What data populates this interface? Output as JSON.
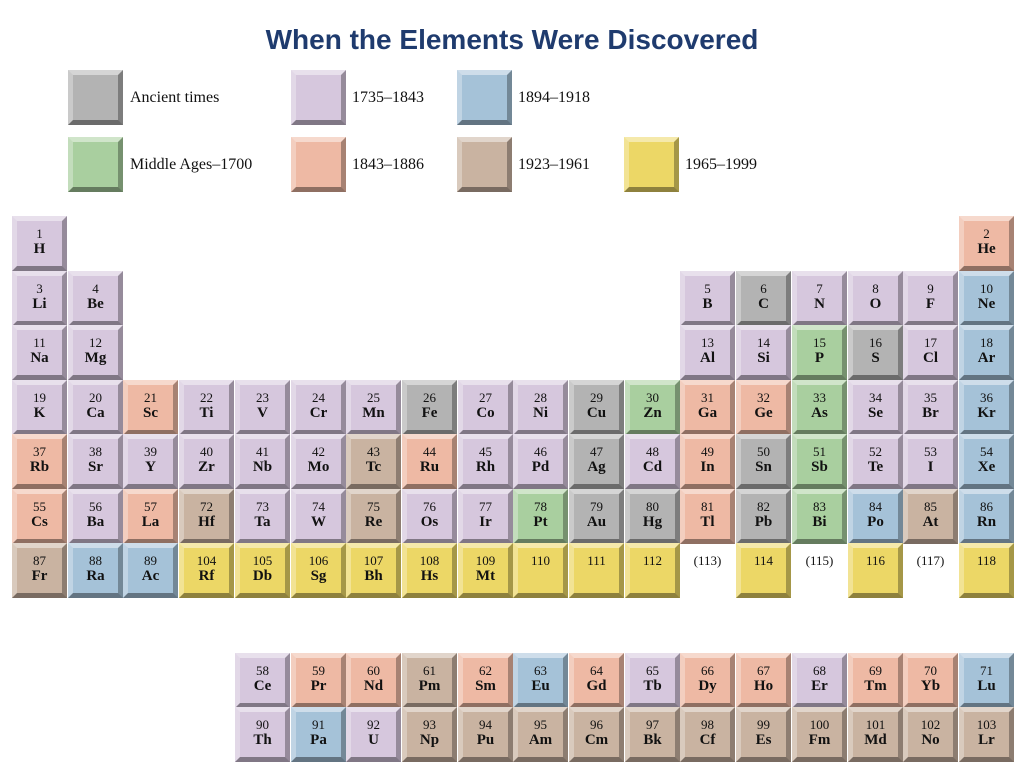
{
  "title": "When the Elements Were Discovered",
  "colors": {
    "ancient": "#b3b3b3",
    "middle": "#a9cf9f",
    "p1735": "#d6c7dd",
    "p1843": "#eeb9a4",
    "p1894": "#a5c2d8",
    "p1923": "#c9b3a1",
    "p1965": "#ecd766"
  },
  "legend": [
    {
      "era": "ancient",
      "label": "Ancient times"
    },
    {
      "era": "p1735",
      "label": "1735–1843"
    },
    {
      "era": "p1894",
      "label": "1894–1918"
    },
    {
      "era": "middle",
      "label": "Middle Ages–1700"
    },
    {
      "era": "p1843",
      "label": "1843–1886"
    },
    {
      "era": "p1923",
      "label": "1923–1961"
    },
    {
      "era": "p1965",
      "label": "1965–1999"
    }
  ],
  "elements": [
    {
      "num": "1",
      "sym": "H",
      "row": 1,
      "col": 1,
      "era": "p1735"
    },
    {
      "num": "2",
      "sym": "He",
      "row": 1,
      "col": 18,
      "era": "p1843"
    },
    {
      "num": "3",
      "sym": "Li",
      "row": 2,
      "col": 1,
      "era": "p1735"
    },
    {
      "num": "4",
      "sym": "Be",
      "row": 2,
      "col": 2,
      "era": "p1735"
    },
    {
      "num": "5",
      "sym": "B",
      "row": 2,
      "col": 13,
      "era": "p1735"
    },
    {
      "num": "6",
      "sym": "C",
      "row": 2,
      "col": 14,
      "era": "ancient"
    },
    {
      "num": "7",
      "sym": "N",
      "row": 2,
      "col": 15,
      "era": "p1735"
    },
    {
      "num": "8",
      "sym": "O",
      "row": 2,
      "col": 16,
      "era": "p1735"
    },
    {
      "num": "9",
      "sym": "F",
      "row": 2,
      "col": 17,
      "era": "p1735"
    },
    {
      "num": "10",
      "sym": "Ne",
      "row": 2,
      "col": 18,
      "era": "p1894"
    },
    {
      "num": "11",
      "sym": "Na",
      "row": 3,
      "col": 1,
      "era": "p1735"
    },
    {
      "num": "12",
      "sym": "Mg",
      "row": 3,
      "col": 2,
      "era": "p1735"
    },
    {
      "num": "13",
      "sym": "Al",
      "row": 3,
      "col": 13,
      "era": "p1735"
    },
    {
      "num": "14",
      "sym": "Si",
      "row": 3,
      "col": 14,
      "era": "p1735"
    },
    {
      "num": "15",
      "sym": "P",
      "row": 3,
      "col": 15,
      "era": "middle"
    },
    {
      "num": "16",
      "sym": "S",
      "row": 3,
      "col": 16,
      "era": "ancient"
    },
    {
      "num": "17",
      "sym": "Cl",
      "row": 3,
      "col": 17,
      "era": "p1735"
    },
    {
      "num": "18",
      "sym": "Ar",
      "row": 3,
      "col": 18,
      "era": "p1894"
    },
    {
      "num": "19",
      "sym": "K",
      "row": 4,
      "col": 1,
      "era": "p1735"
    },
    {
      "num": "20",
      "sym": "Ca",
      "row": 4,
      "col": 2,
      "era": "p1735"
    },
    {
      "num": "21",
      "sym": "Sc",
      "row": 4,
      "col": 3,
      "era": "p1843"
    },
    {
      "num": "22",
      "sym": "Ti",
      "row": 4,
      "col": 4,
      "era": "p1735"
    },
    {
      "num": "23",
      "sym": "V",
      "row": 4,
      "col": 5,
      "era": "p1735"
    },
    {
      "num": "24",
      "sym": "Cr",
      "row": 4,
      "col": 6,
      "era": "p1735"
    },
    {
      "num": "25",
      "sym": "Mn",
      "row": 4,
      "col": 7,
      "era": "p1735"
    },
    {
      "num": "26",
      "sym": "Fe",
      "row": 4,
      "col": 8,
      "era": "ancient"
    },
    {
      "num": "27",
      "sym": "Co",
      "row": 4,
      "col": 9,
      "era": "p1735"
    },
    {
      "num": "28",
      "sym": "Ni",
      "row": 4,
      "col": 10,
      "era": "p1735"
    },
    {
      "num": "29",
      "sym": "Cu",
      "row": 4,
      "col": 11,
      "era": "ancient"
    },
    {
      "num": "30",
      "sym": "Zn",
      "row": 4,
      "col": 12,
      "era": "middle"
    },
    {
      "num": "31",
      "sym": "Ga",
      "row": 4,
      "col": 13,
      "era": "p1843"
    },
    {
      "num": "32",
      "sym": "Ge",
      "row": 4,
      "col": 14,
      "era": "p1843"
    },
    {
      "num": "33",
      "sym": "As",
      "row": 4,
      "col": 15,
      "era": "middle"
    },
    {
      "num": "34",
      "sym": "Se",
      "row": 4,
      "col": 16,
      "era": "p1735"
    },
    {
      "num": "35",
      "sym": "Br",
      "row": 4,
      "col": 17,
      "era": "p1735"
    },
    {
      "num": "36",
      "sym": "Kr",
      "row": 4,
      "col": 18,
      "era": "p1894"
    },
    {
      "num": "37",
      "sym": "Rb",
      "row": 5,
      "col": 1,
      "era": "p1843"
    },
    {
      "num": "38",
      "sym": "Sr",
      "row": 5,
      "col": 2,
      "era": "p1735"
    },
    {
      "num": "39",
      "sym": "Y",
      "row": 5,
      "col": 3,
      "era": "p1735"
    },
    {
      "num": "40",
      "sym": "Zr",
      "row": 5,
      "col": 4,
      "era": "p1735"
    },
    {
      "num": "41",
      "sym": "Nb",
      "row": 5,
      "col": 5,
      "era": "p1735"
    },
    {
      "num": "42",
      "sym": "Mo",
      "row": 5,
      "col": 6,
      "era": "p1735"
    },
    {
      "num": "43",
      "sym": "Tc",
      "row": 5,
      "col": 7,
      "era": "p1923"
    },
    {
      "num": "44",
      "sym": "Ru",
      "row": 5,
      "col": 8,
      "era": "p1843"
    },
    {
      "num": "45",
      "sym": "Rh",
      "row": 5,
      "col": 9,
      "era": "p1735"
    },
    {
      "num": "46",
      "sym": "Pd",
      "row": 5,
      "col": 10,
      "era": "p1735"
    },
    {
      "num": "47",
      "sym": "Ag",
      "row": 5,
      "col": 11,
      "era": "ancient"
    },
    {
      "num": "48",
      "sym": "Cd",
      "row": 5,
      "col": 12,
      "era": "p1735"
    },
    {
      "num": "49",
      "sym": "In",
      "row": 5,
      "col": 13,
      "era": "p1843"
    },
    {
      "num": "50",
      "sym": "Sn",
      "row": 5,
      "col": 14,
      "era": "ancient"
    },
    {
      "num": "51",
      "sym": "Sb",
      "row": 5,
      "col": 15,
      "era": "middle"
    },
    {
      "num": "52",
      "sym": "Te",
      "row": 5,
      "col": 16,
      "era": "p1735"
    },
    {
      "num": "53",
      "sym": "I",
      "row": 5,
      "col": 17,
      "era": "p1735"
    },
    {
      "num": "54",
      "sym": "Xe",
      "row": 5,
      "col": 18,
      "era": "p1894"
    },
    {
      "num": "55",
      "sym": "Cs",
      "row": 6,
      "col": 1,
      "era": "p1843"
    },
    {
      "num": "56",
      "sym": "Ba",
      "row": 6,
      "col": 2,
      "era": "p1735"
    },
    {
      "num": "57",
      "sym": "La",
      "row": 6,
      "col": 3,
      "era": "p1843"
    },
    {
      "num": "72",
      "sym": "Hf",
      "row": 6,
      "col": 4,
      "era": "p1923"
    },
    {
      "num": "73",
      "sym": "Ta",
      "row": 6,
      "col": 5,
      "era": "p1735"
    },
    {
      "num": "74",
      "sym": "W",
      "row": 6,
      "col": 6,
      "era": "p1735"
    },
    {
      "num": "75",
      "sym": "Re",
      "row": 6,
      "col": 7,
      "era": "p1923"
    },
    {
      "num": "76",
      "sym": "Os",
      "row": 6,
      "col": 8,
      "era": "p1735"
    },
    {
      "num": "77",
      "sym": "Ir",
      "row": 6,
      "col": 9,
      "era": "p1735"
    },
    {
      "num": "78",
      "sym": "Pt",
      "row": 6,
      "col": 10,
      "era": "middle"
    },
    {
      "num": "79",
      "sym": "Au",
      "row": 6,
      "col": 11,
      "era": "ancient"
    },
    {
      "num": "80",
      "sym": "Hg",
      "row": 6,
      "col": 12,
      "era": "ancient"
    },
    {
      "num": "81",
      "sym": "Tl",
      "row": 6,
      "col": 13,
      "era": "p1843"
    },
    {
      "num": "82",
      "sym": "Pb",
      "row": 6,
      "col": 14,
      "era": "ancient"
    },
    {
      "num": "83",
      "sym": "Bi",
      "row": 6,
      "col": 15,
      "era": "middle"
    },
    {
      "num": "84",
      "sym": "Po",
      "row": 6,
      "col": 16,
      "era": "p1894"
    },
    {
      "num": "85",
      "sym": "At",
      "row": 6,
      "col": 17,
      "era": "p1923"
    },
    {
      "num": "86",
      "sym": "Rn",
      "row": 6,
      "col": 18,
      "era": "p1894"
    },
    {
      "num": "87",
      "sym": "Fr",
      "row": 7,
      "col": 1,
      "era": "p1923"
    },
    {
      "num": "88",
      "sym": "Ra",
      "row": 7,
      "col": 2,
      "era": "p1894"
    },
    {
      "num": "89",
      "sym": "Ac",
      "row": 7,
      "col": 3,
      "era": "p1894"
    },
    {
      "num": "104",
      "sym": "Rf",
      "row": 7,
      "col": 4,
      "era": "p1965"
    },
    {
      "num": "105",
      "sym": "Db",
      "row": 7,
      "col": 5,
      "era": "p1965"
    },
    {
      "num": "106",
      "sym": "Sg",
      "row": 7,
      "col": 6,
      "era": "p1965"
    },
    {
      "num": "107",
      "sym": "Bh",
      "row": 7,
      "col": 7,
      "era": "p1965"
    },
    {
      "num": "108",
      "sym": "Hs",
      "row": 7,
      "col": 8,
      "era": "p1965"
    },
    {
      "num": "109",
      "sym": "Mt",
      "row": 7,
      "col": 9,
      "era": "p1965"
    },
    {
      "num": "110",
      "sym": "",
      "row": 7,
      "col": 10,
      "era": "p1965"
    },
    {
      "num": "111",
      "sym": "",
      "row": 7,
      "col": 11,
      "era": "p1965"
    },
    {
      "num": "112",
      "sym": "",
      "row": 7,
      "col": 12,
      "era": "p1965"
    },
    {
      "num": "(113)",
      "sym": "",
      "row": 7,
      "col": 13,
      "era": "none"
    },
    {
      "num": "114",
      "sym": "",
      "row": 7,
      "col": 14,
      "era": "p1965"
    },
    {
      "num": "(115)",
      "sym": "",
      "row": 7,
      "col": 15,
      "era": "none"
    },
    {
      "num": "116",
      "sym": "",
      "row": 7,
      "col": 16,
      "era": "p1965"
    },
    {
      "num": "(117)",
      "sym": "",
      "row": 7,
      "col": 17,
      "era": "none"
    },
    {
      "num": "118",
      "sym": "",
      "row": 7,
      "col": 18,
      "era": "p1965"
    },
    {
      "num": "58",
      "sym": "Ce",
      "row": 8,
      "col": 5,
      "era": "p1735"
    },
    {
      "num": "59",
      "sym": "Pr",
      "row": 8,
      "col": 6,
      "era": "p1843"
    },
    {
      "num": "60",
      "sym": "Nd",
      "row": 8,
      "col": 7,
      "era": "p1843"
    },
    {
      "num": "61",
      "sym": "Pm",
      "row": 8,
      "col": 8,
      "era": "p1923"
    },
    {
      "num": "62",
      "sym": "Sm",
      "row": 8,
      "col": 9,
      "era": "p1843"
    },
    {
      "num": "63",
      "sym": "Eu",
      "row": 8,
      "col": 10,
      "era": "p1894"
    },
    {
      "num": "64",
      "sym": "Gd",
      "row": 8,
      "col": 11,
      "era": "p1843"
    },
    {
      "num": "65",
      "sym": "Tb",
      "row": 8,
      "col": 12,
      "era": "p1735"
    },
    {
      "num": "66",
      "sym": "Dy",
      "row": 8,
      "col": 13,
      "era": "p1843"
    },
    {
      "num": "67",
      "sym": "Ho",
      "row": 8,
      "col": 14,
      "era": "p1843"
    },
    {
      "num": "68",
      "sym": "Er",
      "row": 8,
      "col": 15,
      "era": "p1735"
    },
    {
      "num": "69",
      "sym": "Tm",
      "row": 8,
      "col": 16,
      "era": "p1843"
    },
    {
      "num": "70",
      "sym": "Yb",
      "row": 8,
      "col": 17,
      "era": "p1843"
    },
    {
      "num": "71",
      "sym": "Lu",
      "row": 8,
      "col": 18,
      "era": "p1894"
    },
    {
      "num": "90",
      "sym": "Th",
      "row": 9,
      "col": 5,
      "era": "p1735"
    },
    {
      "num": "91",
      "sym": "Pa",
      "row": 9,
      "col": 6,
      "era": "p1894"
    },
    {
      "num": "92",
      "sym": "U",
      "row": 9,
      "col": 7,
      "era": "p1735"
    },
    {
      "num": "93",
      "sym": "Np",
      "row": 9,
      "col": 8,
      "era": "p1923"
    },
    {
      "num": "94",
      "sym": "Pu",
      "row": 9,
      "col": 9,
      "era": "p1923"
    },
    {
      "num": "95",
      "sym": "Am",
      "row": 9,
      "col": 10,
      "era": "p1923"
    },
    {
      "num": "96",
      "sym": "Cm",
      "row": 9,
      "col": 11,
      "era": "p1923"
    },
    {
      "num": "97",
      "sym": "Bk",
      "row": 9,
      "col": 12,
      "era": "p1923"
    },
    {
      "num": "98",
      "sym": "Cf",
      "row": 9,
      "col": 13,
      "era": "p1923"
    },
    {
      "num": "99",
      "sym": "Es",
      "row": 9,
      "col": 14,
      "era": "p1923"
    },
    {
      "num": "100",
      "sym": "Fm",
      "row": 9,
      "col": 15,
      "era": "p1923"
    },
    {
      "num": "101",
      "sym": "Md",
      "row": 9,
      "col": 16,
      "era": "p1923"
    },
    {
      "num": "102",
      "sym": "No",
      "row": 9,
      "col": 17,
      "era": "p1923"
    },
    {
      "num": "103",
      "sym": "Lr",
      "row": 9,
      "col": 18,
      "era": "p1923"
    }
  ]
}
